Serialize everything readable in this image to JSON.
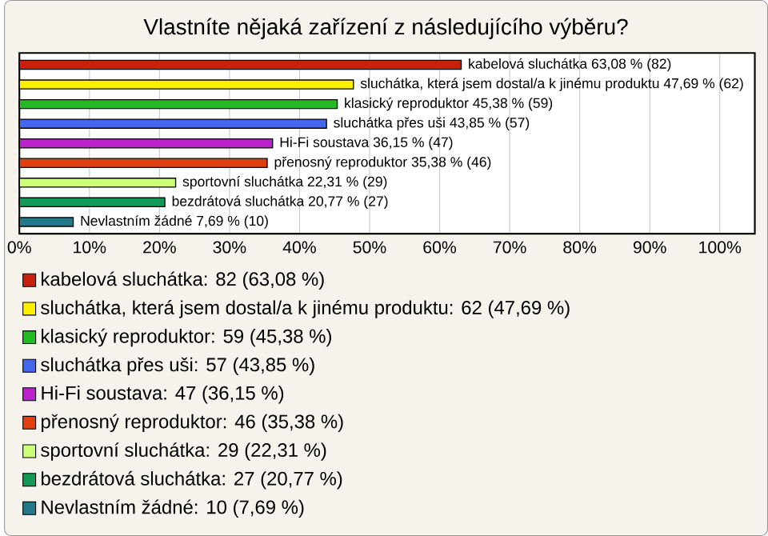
{
  "chart_data": {
    "type": "bar",
    "orientation": "horizontal",
    "title": "Vlastníte nějaká zařízení z následujícího výběru?",
    "categories": [
      null,
      null,
      null,
      null,
      null,
      null,
      null,
      null,
      null
    ],
    "series": [
      {
        "name": "kabelová sluchátka: 82 (63,08 %)",
        "color": "#c8200f",
        "values": [
          63.08,
          null,
          null,
          null,
          null,
          null,
          null,
          null,
          null
        ],
        "value_labels": [
          "kabelová sluchátka 63,08 % (82)",
          null,
          null,
          null,
          null,
          null,
          null,
          null,
          null
        ]
      },
      {
        "name": "sluchátka, která jsem dostal/a k jinému produktu: 62 (47,69 %)",
        "color": "#ffee00",
        "values": [
          null,
          47.69,
          null,
          null,
          null,
          null,
          null,
          null,
          null
        ],
        "value_labels": [
          null,
          "sluchátka, která jsem dostal/a k jinému produktu 47,69 % (62)",
          null,
          null,
          null,
          null,
          null,
          null,
          null
        ]
      },
      {
        "name": "klasický reproduktor: 59 (45,38 %)",
        "color": "#22bb22",
        "values": [
          null,
          null,
          45.38,
          null,
          null,
          null,
          null,
          null,
          null
        ],
        "value_labels": [
          null,
          null,
          "klasický reproduktor 45,38 % (59)",
          null,
          null,
          null,
          null,
          null,
          null
        ]
      },
      {
        "name": "sluchátka přes uši: 57 (43,85 %)",
        "color": "#4466ee",
        "values": [
          null,
          null,
          null,
          43.85,
          null,
          null,
          null,
          null,
          null
        ],
        "value_labels": [
          null,
          null,
          null,
          "sluchátka přes uši 43,85 % (57)",
          null,
          null,
          null,
          null,
          null
        ]
      },
      {
        "name": "Hi-Fi soustava: 47 (36,15 %)",
        "color": "#bb22cc",
        "values": [
          null,
          null,
          null,
          null,
          36.15,
          null,
          null,
          null,
          null
        ],
        "value_labels": [
          null,
          null,
          null,
          null,
          "Hi-Fi soustava 36,15 % (47)",
          null,
          null,
          null,
          null
        ]
      },
      {
        "name": "přenosný reproduktor: 46 (35,38 %)",
        "color": "#e04010",
        "values": [
          null,
          null,
          null,
          null,
          null,
          35.38,
          null,
          null,
          null
        ],
        "value_labels": [
          null,
          null,
          null,
          null,
          null,
          "přenosný reproduktor 35,38 % (46)",
          null,
          null,
          null
        ]
      },
      {
        "name": "sportovní sluchátka: 29 (22,31 %)",
        "color": "#ccff77",
        "values": [
          null,
          null,
          null,
          null,
          null,
          null,
          22.31,
          null,
          null
        ],
        "value_labels": [
          null,
          null,
          null,
          null,
          null,
          null,
          "sportovní sluchátka 22,31 % (29)",
          null,
          null
        ]
      },
      {
        "name": "bezdrátová sluchátka: 27 (20,77 %)",
        "color": "#119955",
        "values": [
          null,
          null,
          null,
          null,
          null,
          null,
          null,
          20.77,
          null
        ],
        "value_labels": [
          null,
          null,
          null,
          null,
          null,
          null,
          null,
          "bezdrátová sluchátka 20,77 % (27)",
          null
        ]
      },
      {
        "name": "Nevlastním žádné: 10 (7,69 %)",
        "color": "#227788",
        "values": [
          null,
          null,
          null,
          null,
          null,
          null,
          null,
          null,
          7.69
        ],
        "value_labels": [
          null,
          null,
          null,
          null,
          null,
          null,
          null,
          null,
          "Nevlastním žádné 7,69 % (10)"
        ]
      }
    ],
    "xlim": [
      0,
      105
    ],
    "xticks": [
      {
        "value": 0,
        "label": "0%"
      },
      {
        "value": 10,
        "label": "10%"
      },
      {
        "value": 20,
        "label": "20%"
      },
      {
        "value": 30,
        "label": "30%"
      },
      {
        "value": 40,
        "label": "40%"
      },
      {
        "value": 50,
        "label": "50%"
      },
      {
        "value": 60,
        "label": "60%"
      },
      {
        "value": 70,
        "label": "70%"
      },
      {
        "value": 80,
        "label": "80%"
      },
      {
        "value": 90,
        "label": "90%"
      },
      {
        "value": 100,
        "label": "100%"
      }
    ],
    "grid": "x",
    "legend": "bottom"
  }
}
